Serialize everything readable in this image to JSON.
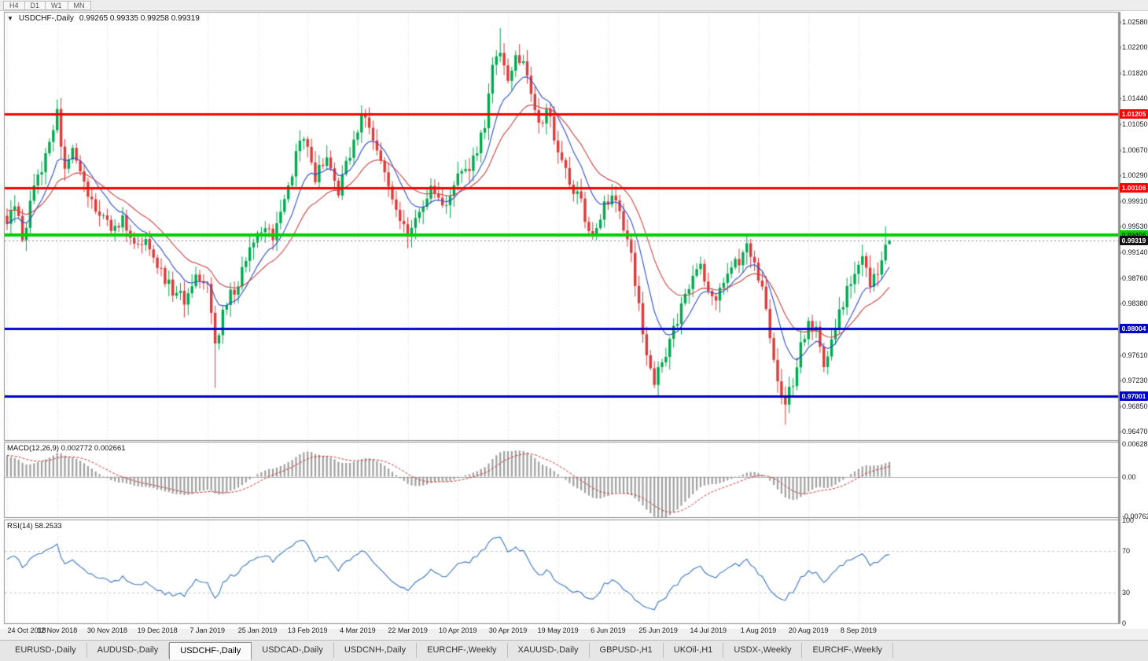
{
  "timeframe_bar": {
    "buttons": [
      {
        "label": "H4"
      },
      {
        "label": "D1"
      },
      {
        "label": "W1"
      },
      {
        "label": "MN"
      }
    ]
  },
  "chart": {
    "title_icon": "▼",
    "symbol_label": "USDCHF-,Daily",
    "ohlc_text": "0.99265 0.99335 0.99258 0.99319"
  },
  "price_axis": {
    "labels": [
      "1.02580",
      "1.02200",
      "1.01820",
      "1.01440",
      "1.01050",
      "1.00670",
      "1.00290",
      "0.99910",
      "0.99530",
      "0.99140",
      "0.98760",
      "0.98380",
      "0.97610",
      "0.97230",
      "0.96850",
      "0.96470"
    ]
  },
  "macd_panel": {
    "label": "MACD(12,26,9) 0.002772 0.002661",
    "axis_labels": [
      "0.006286",
      "0.00",
      "-0.00762"
    ]
  },
  "rsi_panel": {
    "label": "RSI(14) 58.2533",
    "axis_labels": [
      "100",
      "70",
      "30",
      "0"
    ]
  },
  "time_axis": {
    "labels": [
      {
        "day": 0,
        "text": "24 Oct 2018"
      },
      {
        "day": 13,
        "text": "12 Nov 2018"
      },
      {
        "day": 26,
        "text": "30 Nov 2018"
      },
      {
        "day": 39,
        "text": "19 Dec 2018"
      },
      {
        "day": 52,
        "text": "7 Jan 2019"
      },
      {
        "day": 65,
        "text": "25 Jan 2019"
      },
      {
        "day": 78,
        "text": "13 Feb 2019"
      },
      {
        "day": 91,
        "text": "4 Mar 2019"
      },
      {
        "day": 104,
        "text": "22 Mar 2019"
      },
      {
        "day": 117,
        "text": "10 Apr 2019"
      },
      {
        "day": 130,
        "text": "30 Apr 2019"
      },
      {
        "day": 143,
        "text": "19 May 2019"
      },
      {
        "day": 156,
        "text": "6 Jun 2019"
      },
      {
        "day": 169,
        "text": "25 Jun 2019"
      },
      {
        "day": 182,
        "text": "14 Jul 2019"
      },
      {
        "day": 195,
        "text": "1 Aug 2019"
      },
      {
        "day": 208,
        "text": "20 Aug 2019"
      },
      {
        "day": 221,
        "text": "8 Sep 2019"
      }
    ]
  },
  "tab_bar": {
    "tabs": [
      {
        "label": "EURUSD-,Daily",
        "active": false
      },
      {
        "label": "AUDUSD-,Daily",
        "active": false
      },
      {
        "label": "USDCHF-,Daily",
        "active": true
      },
      {
        "label": "USDCAD-,Daily",
        "active": false
      },
      {
        "label": "USDCNH-,Daily",
        "active": false
      },
      {
        "label": "EURCHF-,Weekly",
        "active": false
      },
      {
        "label": "XAUUSD-,Daily",
        "active": false
      },
      {
        "label": "GBPUSD-,H1",
        "active": false
      },
      {
        "label": "UKOil-,H1",
        "active": false
      },
      {
        "label": "USDX-,Weekly",
        "active": false
      },
      {
        "label": "EURCHF-,Weekly",
        "active": false
      }
    ]
  },
  "chart_data": {
    "type": "candlestick",
    "symbol": "USDCHF",
    "timeframe": "Daily",
    "visible_range": {
      "price_min": 0.9634,
      "price_max": 1.0272,
      "days": 230
    },
    "last_ohlc": {
      "open": 0.99265,
      "high": 0.99335,
      "low": 0.99258,
      "close": 0.99319
    },
    "horizontal_lines": [
      {
        "price": 1.01205,
        "label": "1.01205",
        "color": "#FF0000",
        "thickness": 3,
        "text_color": "#FFFFFF"
      },
      {
        "price": 1.00106,
        "label": "1.00106",
        "color": "#FF0000",
        "thickness": 3,
        "text_color": "#FFFFFF"
      },
      {
        "price": 0.99406,
        "label": "0.99406",
        "color": "#00D000",
        "thickness": 4,
        "text_color": "#003300"
      },
      {
        "price": 0.98004,
        "label": "0.98004",
        "color": "#0000CD",
        "thickness": 3,
        "text_color": "#FFFFFF"
      },
      {
        "price": 0.97001,
        "label": "0.97001",
        "color": "#0000CD",
        "thickness": 3,
        "text_color": "#FFFFFF"
      }
    ],
    "current_price": {
      "price": 0.99319,
      "label": "0.99319",
      "badge_color": "#111111",
      "text_color": "#FFFFFF"
    },
    "price_anchors": [
      [
        0,
        0.995
      ],
      [
        2,
        0.999
      ],
      [
        4,
        0.993
      ],
      [
        7,
        1.001
      ],
      [
        10,
        1.006
      ],
      [
        13,
        1.012
      ],
      [
        15,
        1.004
      ],
      [
        17,
        1.0062
      ],
      [
        20,
        1.002
      ],
      [
        23,
        0.998
      ],
      [
        27,
        0.9945
      ],
      [
        30,
        0.9965
      ],
      [
        33,
        0.992
      ],
      [
        36,
        0.9935
      ],
      [
        39,
        0.9895
      ],
      [
        43,
        0.9855
      ],
      [
        46,
        0.9845
      ],
      [
        49,
        0.9885
      ],
      [
        52,
        0.987
      ],
      [
        54,
        0.977
      ],
      [
        55,
        0.98
      ],
      [
        57,
        0.9845
      ],
      [
        60,
        0.9865
      ],
      [
        63,
        0.992
      ],
      [
        66,
        0.995
      ],
      [
        69,
        0.9935
      ],
      [
        72,
        0.9985
      ],
      [
        75,
        1.006
      ],
      [
        77,
        1.009
      ],
      [
        80,
        1.0025
      ],
      [
        83,
        1.006
      ],
      [
        86,
        1.0005
      ],
      [
        89,
        1.006
      ],
      [
        92,
        1.012
      ],
      [
        95,
        1.008
      ],
      [
        98,
        1.004
      ],
      [
        101,
        0.9975
      ],
      [
        104,
        0.9945
      ],
      [
        107,
        0.9975
      ],
      [
        110,
        1.0005
      ],
      [
        113,
        0.9985
      ],
      [
        116,
        1.001
      ],
      [
        118,
        1.0035
      ],
      [
        121,
        1.005
      ],
      [
        124,
        1.0105
      ],
      [
        126,
        1.0185
      ],
      [
        128,
        1.021
      ],
      [
        130,
        1.017
      ],
      [
        132,
        1.0215
      ],
      [
        134,
        1.019
      ],
      [
        136,
        1.015
      ],
      [
        138,
        1.01
      ],
      [
        140,
        1.013
      ],
      [
        143,
        1.007
      ],
      [
        146,
        1.002
      ],
      [
        149,
        0.9985
      ],
      [
        152,
        0.9935
      ],
      [
        155,
        0.9985
      ],
      [
        158,
        1.0
      ],
      [
        160,
        0.9955
      ],
      [
        162,
        0.9905
      ],
      [
        164,
        0.984
      ],
      [
        166,
        0.976
      ],
      [
        168,
        0.9725
      ],
      [
        171,
        0.976
      ],
      [
        174,
        0.9815
      ],
      [
        177,
        0.986
      ],
      [
        180,
        0.9895
      ],
      [
        182,
        0.986
      ],
      [
        184,
        0.984
      ],
      [
        186,
        0.987
      ],
      [
        189,
        0.9895
      ],
      [
        192,
        0.992
      ],
      [
        194,
        0.989
      ],
      [
        196,
        0.9855
      ],
      [
        198,
        0.979
      ],
      [
        200,
        0.9725
      ],
      [
        202,
        0.969
      ],
      [
        204,
        0.972
      ],
      [
        206,
        0.9775
      ],
      [
        208,
        0.981
      ],
      [
        210,
        0.98
      ],
      [
        212,
        0.9745
      ],
      [
        214,
        0.9785
      ],
      [
        216,
        0.982
      ],
      [
        218,
        0.9855
      ],
      [
        220,
        0.988
      ],
      [
        222,
        0.99
      ],
      [
        224,
        0.9872
      ],
      [
        226,
        0.989
      ],
      [
        228,
        0.9925
      ],
      [
        229,
        0.99319
      ]
    ],
    "wick_events": [
      {
        "day": 13,
        "high": 1.0133
      },
      {
        "day": 54,
        "low": 0.9712
      },
      {
        "day": 92,
        "high": 1.0129
      },
      {
        "day": 128,
        "high": 1.0249
      },
      {
        "day": 202,
        "low": 0.9657
      },
      {
        "day": 228,
        "high": 0.9953
      }
    ],
    "indicators": {
      "ma_fast": {
        "type": "EMA",
        "period": 10,
        "color": "#2E4FC8"
      },
      "ma_slow": {
        "type": "EMA",
        "period": 22,
        "color": "#CC4444"
      },
      "macd": {
        "fast": 12,
        "slow": 26,
        "signal": 9,
        "values_text": "0.002772 0.002661",
        "histogram_color": "#A0A0A0",
        "signal_color": "#C83232",
        "axis_max": 0.0066,
        "axis_min": -0.0078
      },
      "rsi": {
        "period": 14,
        "value_text": "58.2533",
        "color": "#3A78C2",
        "levels": [
          70,
          30
        ],
        "axis_max": 100,
        "axis_min": 0
      }
    },
    "colors": {
      "up": "#00A94F",
      "down": "#DD3A3A",
      "grid": "#DADADA",
      "panel_border": "#909090"
    }
  }
}
